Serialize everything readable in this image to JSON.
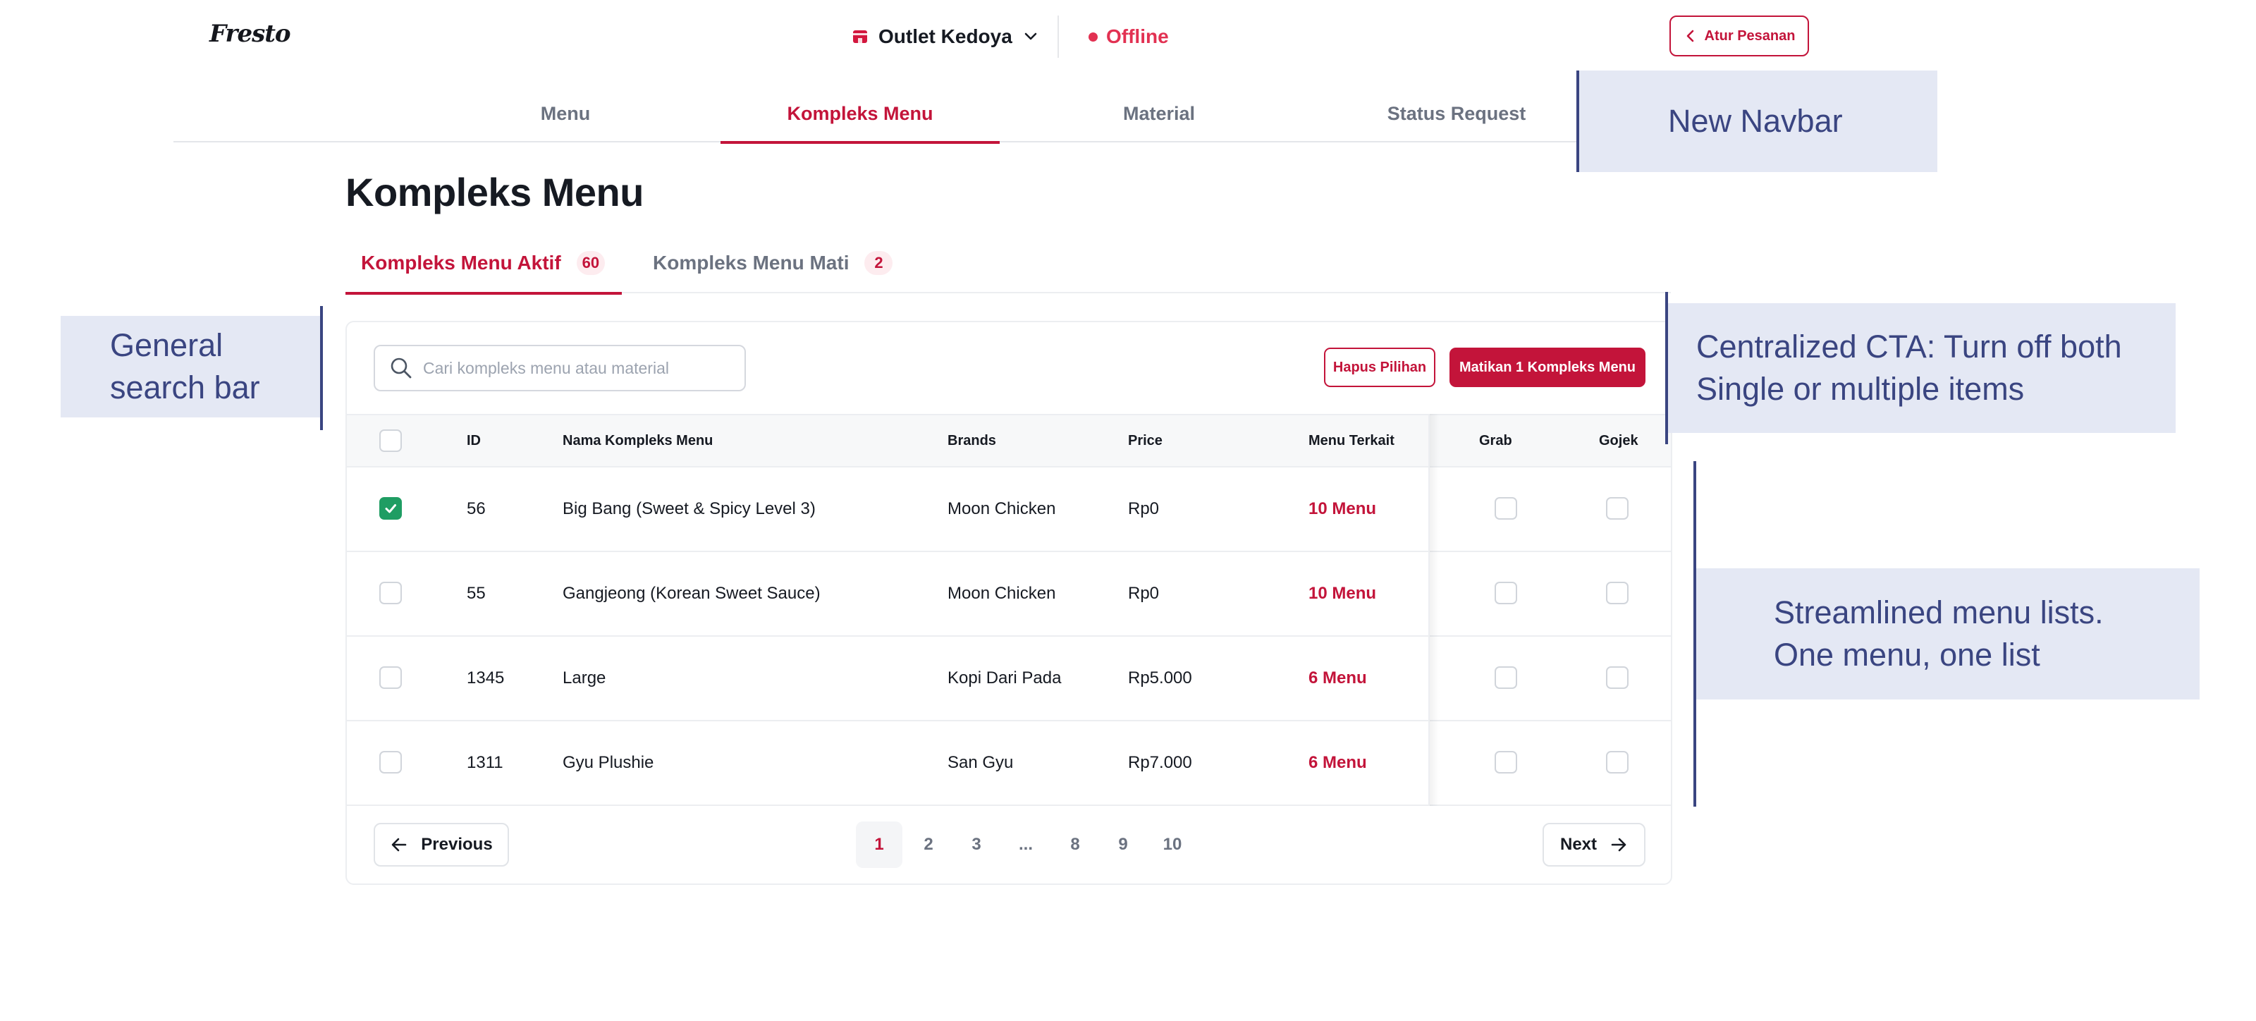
{
  "header": {
    "logo": "Fresto",
    "outlet_label": "Outlet Kedoya",
    "status_label": "Offline",
    "atur_button": "Atur Pesanan"
  },
  "nav": {
    "items": [
      {
        "label": "Menu",
        "active": false
      },
      {
        "label": "Kompleks Menu",
        "active": true
      },
      {
        "label": "Material",
        "active": false
      },
      {
        "label": "Status Request",
        "active": false
      }
    ]
  },
  "page": {
    "title": "Kompleks Menu"
  },
  "subtabs": [
    {
      "label": "Kompleks Menu Aktif",
      "count": "60",
      "active": true
    },
    {
      "label": "Kompleks Menu Mati",
      "count": "2",
      "active": false
    }
  ],
  "toolbar": {
    "search_placeholder": "Cari kompleks menu atau material",
    "clear_button": "Hapus Pilihan",
    "turn_off_button": "Matikan 1 Kompleks Menu"
  },
  "table": {
    "columns": [
      "ID",
      "Nama Kompleks Menu",
      "Brands",
      "Price",
      "Menu Terkait",
      "Grab",
      "Gojek"
    ],
    "rows": [
      {
        "checked": true,
        "id": "56",
        "name": "Big Bang (Sweet & Spicy Level 3)",
        "brand": "Moon Chicken",
        "price": "Rp0",
        "related": "10 Menu"
      },
      {
        "checked": false,
        "id": "55",
        "name": "Gangjeong (Korean Sweet Sauce)",
        "brand": "Moon Chicken",
        "price": "Rp0",
        "related": "10 Menu"
      },
      {
        "checked": false,
        "id": "1345",
        "name": "Large",
        "brand": "Kopi Dari Pada",
        "price": "Rp5.000",
        "related": "6 Menu"
      },
      {
        "checked": false,
        "id": "1311",
        "name": "Gyu Plushie",
        "brand": "San Gyu",
        "price": "Rp7.000",
        "related": "6 Menu"
      }
    ]
  },
  "pagination": {
    "previous": "Previous",
    "next": "Next",
    "pages": [
      "1",
      "2",
      "3",
      "...",
      "8",
      "9",
      "10"
    ],
    "current": "1"
  },
  "annotations": {
    "navbar": "New Navbar",
    "search_line1": "General",
    "search_line2": "search bar",
    "cta_line1": "Centralized CTA: Turn off both",
    "cta_line2": "Single or multiple items",
    "list_line1": "Streamlined menu lists.",
    "list_line2": "One menu, one list"
  },
  "colors": {
    "accent": "#c3143a",
    "status_offline": "#e23152",
    "checkbox_checked": "#1f9d63",
    "annotation_bg": "#e4e8f4",
    "annotation_text": "#3a4581"
  }
}
